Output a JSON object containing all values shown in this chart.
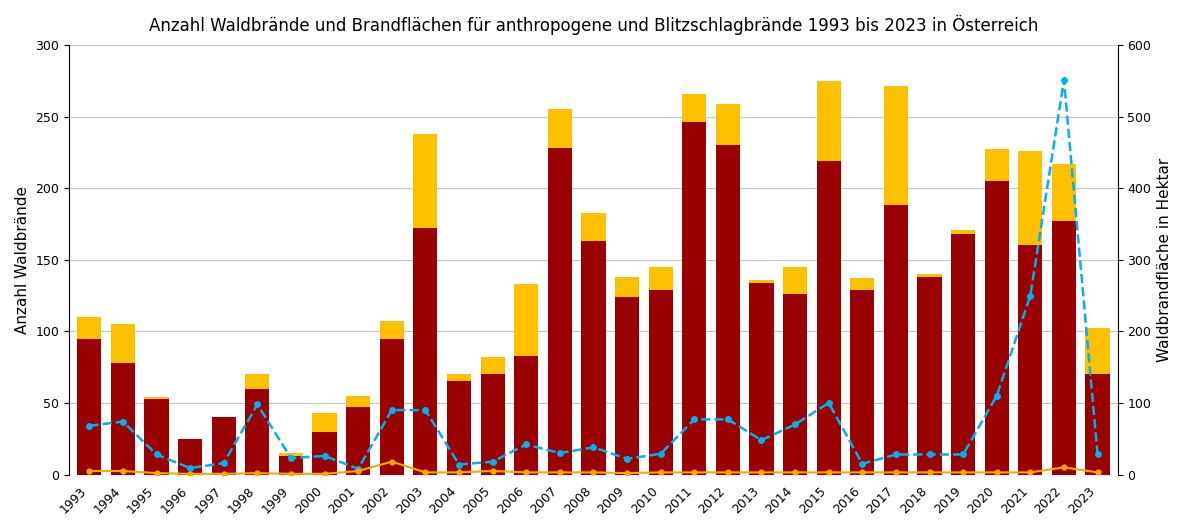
{
  "title": "Anzahl Waldbrände und Brandflächen für anthropogene und Blitzschlagbrände 1993 bis 2023 in Österreich",
  "years": [
    1993,
    1994,
    1995,
    1996,
    1997,
    1998,
    1999,
    2000,
    2001,
    2002,
    2003,
    2004,
    2005,
    2006,
    2007,
    2008,
    2009,
    2010,
    2011,
    2012,
    2013,
    2014,
    2015,
    2016,
    2017,
    2018,
    2019,
    2020,
    2021,
    2022,
    2023
  ],
  "red_bars": [
    95,
    78,
    53,
    25,
    40,
    60,
    13,
    30,
    47,
    95,
    172,
    65,
    70,
    83,
    228,
    163,
    124,
    129,
    246,
    230,
    134,
    126,
    219,
    129,
    188,
    138,
    168,
    205,
    160,
    177,
    70
  ],
  "yellow_bars": [
    15,
    27,
    1,
    0,
    0,
    10,
    2,
    13,
    8,
    12,
    66,
    5,
    12,
    50,
    27,
    20,
    14,
    16,
    20,
    29,
    2,
    19,
    56,
    8,
    83,
    2,
    3,
    22,
    66,
    40,
    32
  ],
  "cyan_line": [
    68,
    74,
    28,
    9,
    16,
    98,
    23,
    26,
    8,
    90,
    90,
    14,
    18,
    42,
    30,
    38,
    22,
    29,
    77,
    77,
    48,
    70,
    100,
    15,
    28,
    28,
    28,
    110,
    250,
    551,
    28
  ],
  "orange_line": [
    5,
    5,
    2,
    1,
    1,
    2,
    1,
    1,
    5,
    18,
    3,
    3,
    5,
    3,
    3,
    3,
    2,
    3,
    3,
    3,
    3,
    3,
    3,
    3,
    3,
    3,
    3,
    3,
    3,
    10,
    3
  ],
  "ylabel_left": "Anzahl Waldbrände",
  "ylabel_right": "Waldbrandfläche in Hektar",
  "ylim_left": [
    0,
    300
  ],
  "ylim_right": [
    0,
    600
  ],
  "yticks_left": [
    0,
    50,
    100,
    150,
    200,
    250,
    300
  ],
  "yticks_right": [
    0,
    100,
    200,
    300,
    400,
    500,
    600
  ],
  "bar_color_red": "#9B0000",
  "bar_color_yellow": "#FFC000",
  "cyan_color": "#00B0F0",
  "orange_color": "#FFA500",
  "background_color": "#FFFFFF",
  "grid_color": "#C8C8C8",
  "title_fontsize": 12,
  "label_fontsize": 11,
  "tick_fontsize": 9
}
